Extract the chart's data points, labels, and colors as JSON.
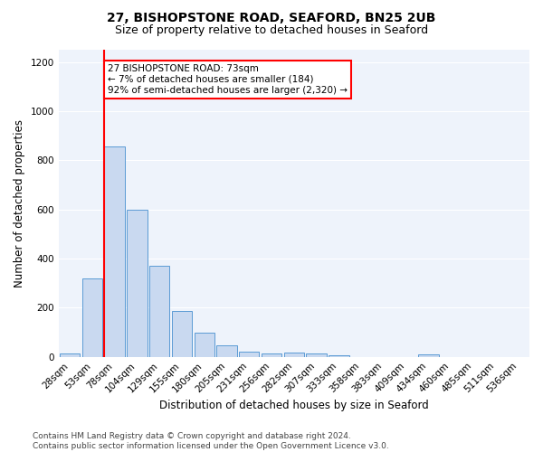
{
  "title1": "27, BISHOPSTONE ROAD, SEAFORD, BN25 2UB",
  "title2": "Size of property relative to detached houses in Seaford",
  "xlabel": "Distribution of detached houses by size in Seaford",
  "ylabel": "Number of detached properties",
  "bar_labels": [
    "28sqm",
    "53sqm",
    "78sqm",
    "104sqm",
    "129sqm",
    "155sqm",
    "180sqm",
    "205sqm",
    "231sqm",
    "256sqm",
    "282sqm",
    "307sqm",
    "333sqm",
    "358sqm",
    "383sqm",
    "409sqm",
    "434sqm",
    "460sqm",
    "485sqm",
    "511sqm",
    "536sqm"
  ],
  "bar_values": [
    15,
    320,
    855,
    600,
    370,
    185,
    100,
    48,
    20,
    15,
    17,
    15,
    8,
    0,
    0,
    0,
    10,
    0,
    0,
    0,
    0
  ],
  "bar_color": "#c9d9f0",
  "bar_edge_color": "#5b9bd5",
  "annotation_text": "27 BISHOPSTONE ROAD: 73sqm\n← 7% of detached houses are smaller (184)\n92% of semi-detached houses are larger (2,320) →",
  "annotation_box_color": "white",
  "annotation_box_edge_color": "red",
  "vline_color": "red",
  "vline_x_index": 2,
  "ylim": [
    0,
    1250
  ],
  "yticks": [
    0,
    200,
    400,
    600,
    800,
    1000,
    1200
  ],
  "footer1": "Contains HM Land Registry data © Crown copyright and database right 2024.",
  "footer2": "Contains public sector information licensed under the Open Government Licence v3.0.",
  "bg_color": "#eef3fb",
  "title1_fontsize": 10,
  "title2_fontsize": 9,
  "xlabel_fontsize": 8.5,
  "ylabel_fontsize": 8.5,
  "tick_fontsize": 7.5,
  "annotation_fontsize": 7.5,
  "footer_fontsize": 6.5
}
